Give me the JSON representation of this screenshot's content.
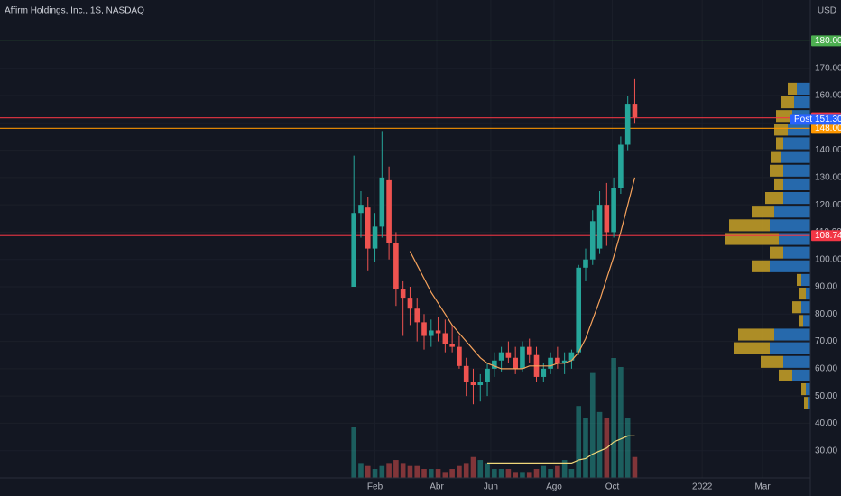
{
  "chart_data": {
    "type": "candlestick",
    "title": "Affirm Holdings, Inc., 1S, NASDAQ",
    "currency": "USD",
    "up_color": "#26a69a",
    "down_color": "#ef5350",
    "grid": true,
    "open": [
      90,
      117,
      119,
      104,
      112,
      129,
      106,
      89,
      86,
      82,
      77,
      72,
      74,
      73,
      69,
      68,
      61,
      55,
      54,
      55,
      60,
      63,
      66,
      64,
      60,
      68,
      65,
      57,
      60,
      64,
      62,
      63,
      66,
      97,
      100,
      104,
      120,
      110,
      126,
      142,
      157
    ],
    "high": [
      138,
      125,
      123,
      117,
      147,
      134,
      110,
      92,
      90,
      86,
      80,
      78,
      79,
      78,
      76,
      72,
      64,
      60,
      58,
      62,
      66,
      68,
      70,
      68,
      70,
      71,
      68,
      62,
      66,
      68,
      66,
      67,
      98,
      104,
      118,
      125,
      128,
      130,
      145,
      160,
      166
    ],
    "low": [
      90,
      108,
      96,
      99,
      108,
      100,
      83,
      72,
      76,
      70,
      67,
      68,
      70,
      66,
      66,
      60,
      50,
      47,
      48,
      50,
      57,
      59,
      62,
      58,
      59,
      62,
      55,
      55,
      58,
      60,
      58,
      60,
      65,
      92,
      98,
      102,
      105,
      108,
      124,
      140,
      150
    ],
    "close": [
      117,
      120,
      104,
      112,
      130,
      106,
      89,
      86,
      82,
      77,
      72,
      74,
      73,
      69,
      68,
      61,
      55,
      54,
      55,
      60,
      63,
      66,
      64,
      60,
      68,
      65,
      57,
      60,
      64,
      62,
      63,
      66,
      97,
      100,
      114,
      120,
      110,
      126,
      142,
      157,
      152
    ],
    "price_ma": [
      null,
      null,
      null,
      null,
      null,
      null,
      null,
      null,
      103,
      98,
      93,
      88,
      84,
      80,
      76,
      73,
      70,
      67,
      64,
      62,
      61,
      60,
      60,
      60,
      60,
      61,
      61,
      61,
      61,
      62,
      62,
      63,
      66,
      71,
      78,
      85,
      93,
      101,
      110,
      120,
      130
    ],
    "volume": [
      17,
      5,
      4,
      3,
      4,
      5,
      6,
      5,
      4,
      4,
      3,
      3,
      3,
      2,
      3,
      4,
      5,
      7,
      6,
      5,
      3,
      3,
      3,
      2,
      2,
      2,
      3,
      4,
      3,
      4,
      6,
      3,
      24,
      20,
      35,
      22,
      20,
      40,
      37,
      20,
      7
    ],
    "volume_ma": [
      null,
      null,
      null,
      null,
      null,
      null,
      null,
      null,
      null,
      null,
      null,
      null,
      null,
      null,
      null,
      null,
      null,
      null,
      null,
      5,
      5,
      5,
      5,
      5,
      5,
      5,
      5,
      5,
      5,
      5,
      5,
      5,
      6,
      6.5,
      8,
      9,
      10,
      12,
      13,
      14,
      14
    ],
    "volume_ylim": [
      0,
      40
    ],
    "xlim": [
      -50.4,
      65
    ],
    "xticks": [
      {
        "value": 3,
        "label": "Feb"
      },
      {
        "value": 11.8,
        "label": "Abr"
      },
      {
        "value": 19.5,
        "label": "Jun"
      },
      {
        "value": 28.5,
        "label": "Ago"
      },
      {
        "value": 36.8,
        "label": "Oct"
      },
      {
        "value": 49.6,
        "label": "2022"
      },
      {
        "value": 58.2,
        "label": "Mar"
      }
    ],
    "ylim": [
      20,
      195
    ],
    "yticks": [
      {
        "value": 30,
        "label": "30.00"
      },
      {
        "value": 40,
        "label": "40.00"
      },
      {
        "value": 50,
        "label": "50.00"
      },
      {
        "value": 60,
        "label": "60.00"
      },
      {
        "value": 70,
        "label": "70.00"
      },
      {
        "value": 80,
        "label": "80.00"
      },
      {
        "value": 90,
        "label": "90.00"
      },
      {
        "value": 100,
        "label": "100.00"
      },
      {
        "value": 110,
        "label": "110.00"
      },
      {
        "value": 120,
        "label": "120.00"
      },
      {
        "value": 130,
        "label": "130.00"
      },
      {
        "value": 140,
        "label": "140.00"
      },
      {
        "value": 150,
        "label": "150.00"
      },
      {
        "value": 160,
        "label": "160.00"
      },
      {
        "value": 170,
        "label": "170.00"
      }
    ],
    "price_lines": [
      {
        "value": 180,
        "label": "180.00",
        "color": "#4caf50"
      },
      {
        "value": 151.86,
        "label": "151.86",
        "color": "#f23645"
      },
      {
        "value": 148,
        "label": "148.00",
        "color": "#ff9800"
      },
      {
        "value": 108.74,
        "label": "108.74",
        "color": "#f23645"
      }
    ],
    "post_price": {
      "tag": "Post",
      "value": 151.3,
      "label": "151.30",
      "color": "#2962ff"
    },
    "volume_profile": {
      "bins": [
        45,
        50,
        55,
        60,
        65,
        70,
        75,
        80,
        85,
        90,
        95,
        100,
        105,
        110,
        115,
        120,
        125,
        130,
        135,
        140,
        145,
        150,
        155,
        160,
        165
      ],
      "up": [
        3,
        5,
        20,
        30,
        45,
        40,
        8,
        10,
        5,
        10,
        45,
        30,
        35,
        45,
        40,
        30,
        30,
        30,
        32,
        30,
        25,
        20,
        18,
        15
      ],
      "down": [
        4,
        5,
        15,
        25,
        40,
        40,
        5,
        10,
        8,
        5,
        20,
        15,
        60,
        45,
        25,
        20,
        10,
        15,
        12,
        8,
        15,
        18,
        15,
        10
      ],
      "up_color": "#2a78c4",
      "down_color": "#c9a227"
    }
  }
}
